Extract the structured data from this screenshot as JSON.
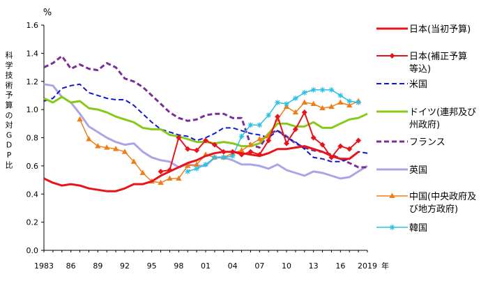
{
  "chart_data": {
    "type": "line",
    "title": "",
    "ylabel": "科学技術予算の対GDP比",
    "unit_label": "%",
    "xlabel_suffix": "年",
    "ylim": [
      0,
      1.6
    ],
    "yticks": [
      "0.0",
      "0.2",
      "0.4",
      "0.6",
      "0.8",
      "1.0",
      "1.2",
      "1.4",
      "1.6"
    ],
    "xlim": [
      1983,
      2019
    ],
    "xticks": [
      {
        "year": 1983,
        "label": "1983"
      },
      {
        "year": 1986,
        "label": "86"
      },
      {
        "year": 1989,
        "label": "89"
      },
      {
        "year": 1992,
        "label": "92"
      },
      {
        "year": 1995,
        "label": "95"
      },
      {
        "year": 1998,
        "label": "98"
      },
      {
        "year": 2001,
        "label": "01"
      },
      {
        "year": 2004,
        "label": "04"
      },
      {
        "year": 2007,
        "label": "07"
      },
      {
        "year": 2010,
        "label": "10"
      },
      {
        "year": 2013,
        "label": "13"
      },
      {
        "year": 2016,
        "label": "16"
      },
      {
        "year": 2019,
        "label": "2019"
      }
    ],
    "grid": false,
    "legend_position": "right",
    "series": [
      {
        "name": "日本(当初予算)",
        "legend_lines": [
          "日本(当初予算)"
        ],
        "color": "#e8141a",
        "style": "solid",
        "width": 3,
        "marker": "none",
        "x": [
          1983,
          1984,
          1985,
          1986,
          1987,
          1988,
          1989,
          1990,
          1991,
          1992,
          1993,
          1994,
          1995,
          1996,
          1997,
          1998,
          1999,
          2000,
          2001,
          2002,
          2003,
          2004,
          2005,
          2006,
          2007,
          2008,
          2009,
          2010,
          2011,
          2012,
          2013,
          2014,
          2015,
          2016,
          2017,
          2018
        ],
        "y": [
          0.51,
          0.48,
          0.46,
          0.47,
          0.46,
          0.44,
          0.43,
          0.42,
          0.42,
          0.44,
          0.47,
          0.47,
          0.49,
          0.53,
          0.56,
          0.59,
          0.62,
          0.64,
          0.67,
          0.69,
          0.7,
          0.7,
          0.69,
          0.68,
          0.67,
          0.69,
          0.72,
          0.72,
          0.73,
          0.74,
          0.72,
          0.7,
          0.67,
          0.65,
          0.65,
          0.7
        ]
      },
      {
        "name": "日本(補正予算等込)",
        "legend_lines": [
          "日本(補正予算",
          "等込)"
        ],
        "color": "#e8141a",
        "style": "solid",
        "width": 2,
        "marker": "diamond",
        "x": [
          1996,
          1997,
          1998,
          1999,
          2000,
          2001,
          2002,
          2003,
          2004,
          2005,
          2006,
          2007,
          2008,
          2009,
          2010,
          2011,
          2012,
          2013,
          2014,
          2015,
          2016,
          2017,
          2018
        ],
        "y": [
          0.56,
          0.57,
          0.8,
          0.72,
          0.71,
          0.78,
          0.75,
          0.7,
          0.7,
          0.68,
          0.7,
          0.68,
          0.78,
          0.95,
          0.76,
          0.86,
          0.98,
          0.8,
          0.75,
          0.66,
          0.74,
          0.72,
          0.78
        ]
      },
      {
        "name": "米国",
        "legend_lines": [
          "米国"
        ],
        "color": "#1414d4",
        "style": "dashed",
        "width": 2,
        "marker": "none",
        "x": [
          1983,
          1984,
          1985,
          1986,
          1987,
          1988,
          1989,
          1990,
          1991,
          1992,
          1993,
          1994,
          1995,
          1996,
          1997,
          1998,
          1999,
          2000,
          2001,
          2002,
          2003,
          2004,
          2005,
          2006,
          2007,
          2008,
          2009,
          2010,
          2011,
          2012,
          2013,
          2014,
          2015,
          2016,
          2017,
          2018,
          2019
        ],
        "y": [
          1.06,
          1.08,
          1.15,
          1.17,
          1.18,
          1.12,
          1.1,
          1.08,
          1.07,
          1.07,
          1.03,
          0.97,
          0.91,
          0.86,
          0.84,
          0.82,
          0.81,
          0.78,
          0.8,
          0.83,
          0.87,
          0.87,
          0.85,
          0.83,
          0.82,
          0.8,
          0.85,
          0.8,
          0.77,
          0.72,
          0.66,
          0.65,
          0.63,
          0.63,
          0.65,
          0.7,
          0.69
        ]
      },
      {
        "name": "ドイツ(連邦及び州政府)",
        "legend_lines": [
          "ドイツ(連邦及び",
          "州政府)"
        ],
        "color": "#86c91a",
        "style": "solid",
        "width": 3,
        "marker": "none",
        "x": [
          1983,
          1984,
          1985,
          1986,
          1987,
          1988,
          1989,
          1990,
          1991,
          1992,
          1993,
          1994,
          1995,
          1996,
          1997,
          1998,
          1999,
          2000,
          2001,
          2002,
          2003,
          2004,
          2005,
          2006,
          2007,
          2008,
          2009,
          2010,
          2011,
          2012,
          2013,
          2014,
          2015,
          2016,
          2017,
          2018,
          2019
        ],
        "y": [
          1.08,
          1.05,
          1.09,
          1.05,
          1.06,
          1.01,
          1.0,
          0.98,
          0.95,
          0.93,
          0.91,
          0.87,
          0.86,
          0.86,
          0.82,
          0.81,
          0.79,
          0.77,
          0.77,
          0.76,
          0.77,
          0.76,
          0.74,
          0.74,
          0.76,
          0.83,
          0.9,
          0.9,
          0.88,
          0.88,
          0.91,
          0.87,
          0.87,
          0.9,
          0.93,
          0.94,
          0.97
        ]
      },
      {
        "name": "フランス",
        "legend_lines": [
          "フランス"
        ],
        "color": "#7a2f96",
        "style": "dashed",
        "width": 3,
        "marker": "none",
        "x": [
          1983,
          1984,
          1985,
          1986,
          1987,
          1988,
          1989,
          1990,
          1991,
          1992,
          1993,
          1994,
          1995,
          1996,
          1997,
          1998,
          1999,
          2000,
          2001,
          2002,
          2003,
          2004,
          2005,
          2006,
          2007,
          2008,
          2009,
          2010,
          2011,
          2012,
          2013,
          2014,
          2015,
          2016,
          2017,
          2018,
          2019
        ],
        "y": [
          1.3,
          1.33,
          1.38,
          1.29,
          1.32,
          1.29,
          1.28,
          1.33,
          1.3,
          1.22,
          1.2,
          1.16,
          1.1,
          1.04,
          0.98,
          0.94,
          0.92,
          0.93,
          0.96,
          0.97,
          0.97,
          0.94,
          0.94,
          0.75,
          0.73,
          0.83,
          0.85,
          0.81,
          0.76,
          0.73,
          0.71,
          0.7,
          0.68,
          0.65,
          0.62,
          0.59,
          0.59
        ]
      },
      {
        "name": "英国",
        "legend_lines": [
          "英国"
        ],
        "color": "#a9a5e6",
        "style": "solid",
        "width": 3,
        "marker": "none",
        "x": [
          1983,
          1984,
          1985,
          1986,
          1987,
          1988,
          1989,
          1990,
          1991,
          1992,
          1993,
          1994,
          1995,
          1996,
          1997,
          1998,
          1999,
          2000,
          2001,
          2002,
          2003,
          2004,
          2005,
          2006,
          2007,
          2008,
          2009,
          2010,
          2011,
          2012,
          2013,
          2014,
          2015,
          2016,
          2017,
          2018,
          2019
        ],
        "y": [
          1.18,
          1.17,
          1.09,
          1.05,
          0.97,
          0.88,
          0.84,
          0.8,
          0.77,
          0.75,
          0.76,
          0.7,
          0.66,
          0.64,
          0.63,
          0.59,
          0.61,
          0.6,
          0.6,
          0.66,
          0.66,
          0.64,
          0.61,
          0.61,
          0.6,
          0.58,
          0.61,
          0.57,
          0.55,
          0.53,
          0.56,
          0.55,
          0.53,
          0.51,
          0.52,
          0.56,
          0.6
        ]
      },
      {
        "name": "中国(中央政府及び地方政府)",
        "legend_lines": [
          "中国(中央政府及",
          "び地方政府)"
        ],
        "color": "#f07d19",
        "style": "solid",
        "width": 1.5,
        "marker": "triangle",
        "x": [
          1987,
          1988,
          1989,
          1990,
          1991,
          1992,
          1993,
          1994,
          1995,
          1996,
          1997,
          1998,
          1999,
          2000,
          2001,
          2002,
          2003,
          2004,
          2005,
          2006,
          2007,
          2008,
          2009,
          2010,
          2011,
          2012,
          2013,
          2014,
          2015,
          2016,
          2017,
          2018
        ],
        "y": [
          0.93,
          0.79,
          0.74,
          0.73,
          0.72,
          0.7,
          0.63,
          0.55,
          0.49,
          0.48,
          0.51,
          0.51,
          0.6,
          0.61,
          0.68,
          0.66,
          0.66,
          0.69,
          0.71,
          0.75,
          0.79,
          0.81,
          0.93,
          1.02,
          0.98,
          1.05,
          1.04,
          1.01,
          1.02,
          1.05,
          1.03,
          1.06
        ]
      },
      {
        "name": "韓国",
        "legend_lines": [
          "韓国"
        ],
        "color": "#29c0e3",
        "style": "solid",
        "width": 1.5,
        "marker": "star",
        "x": [
          1999,
          2000,
          2001,
          2002,
          2003,
          2004,
          2005,
          2006,
          2007,
          2008,
          2009,
          2010,
          2011,
          2012,
          2013,
          2014,
          2015,
          2016,
          2017,
          2018
        ],
        "y": [
          0.56,
          0.58,
          0.61,
          0.66,
          0.66,
          0.67,
          0.81,
          0.89,
          0.89,
          0.96,
          1.05,
          1.04,
          1.08,
          1.12,
          1.14,
          1.14,
          1.14,
          1.1,
          1.06,
          1.05
        ]
      }
    ]
  }
}
